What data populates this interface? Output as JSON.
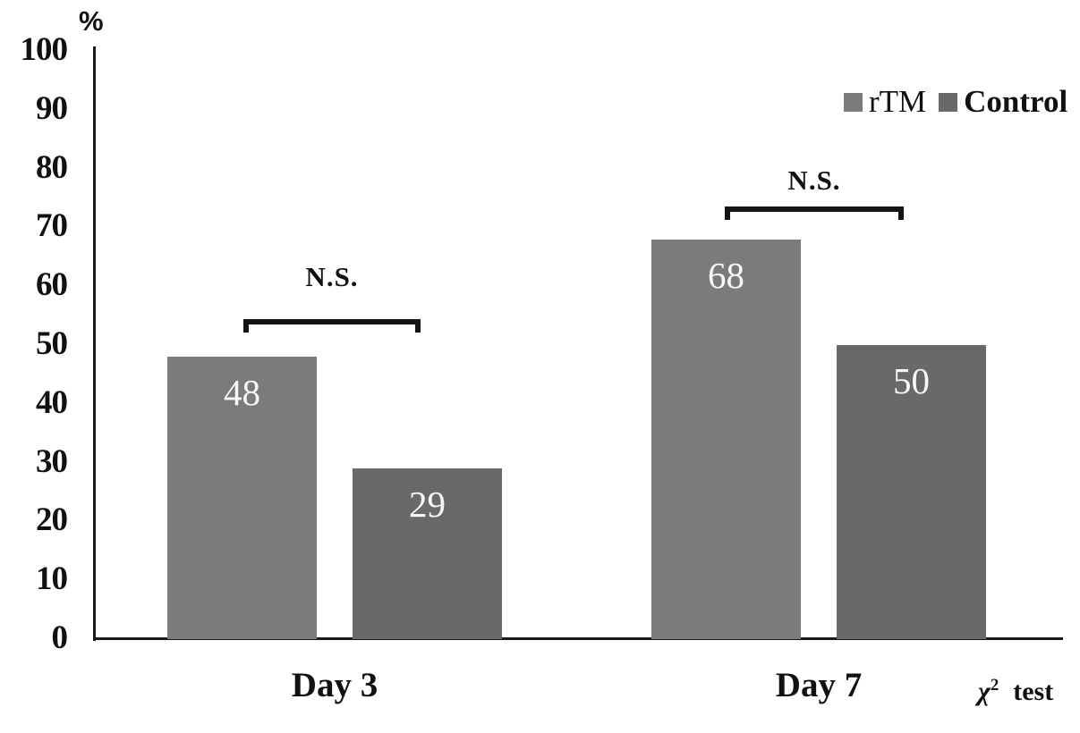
{
  "chart_data": {
    "type": "bar",
    "title": "",
    "ylabel": "%",
    "xlabel": "",
    "ylim": [
      0,
      100
    ],
    "yticks": [
      0,
      10,
      20,
      30,
      40,
      50,
      60,
      70,
      80,
      90,
      100
    ],
    "categories": [
      "Day 3",
      "Day 7"
    ],
    "series": [
      {
        "name": "rTM",
        "color": "#7b7b7b",
        "values": [
          48,
          68
        ]
      },
      {
        "name": "Control",
        "color": "#696969",
        "values": [
          29,
          50
        ]
      }
    ],
    "value_label_color": "#f7f7f7",
    "annotations": [
      {
        "group": "Day 3",
        "label": "N.S."
      },
      {
        "group": "Day 7",
        "label": "N.S."
      }
    ],
    "legend_position": "top-right",
    "grid": false,
    "stat_test_note": "χ2 test"
  },
  "axis": {
    "unit_label": "%"
  },
  "legend": {
    "items": [
      {
        "label": "rTM"
      },
      {
        "label": "Control"
      }
    ]
  },
  "footer": {
    "chi": "χ",
    "exponent": "2",
    "test_label": "test"
  }
}
